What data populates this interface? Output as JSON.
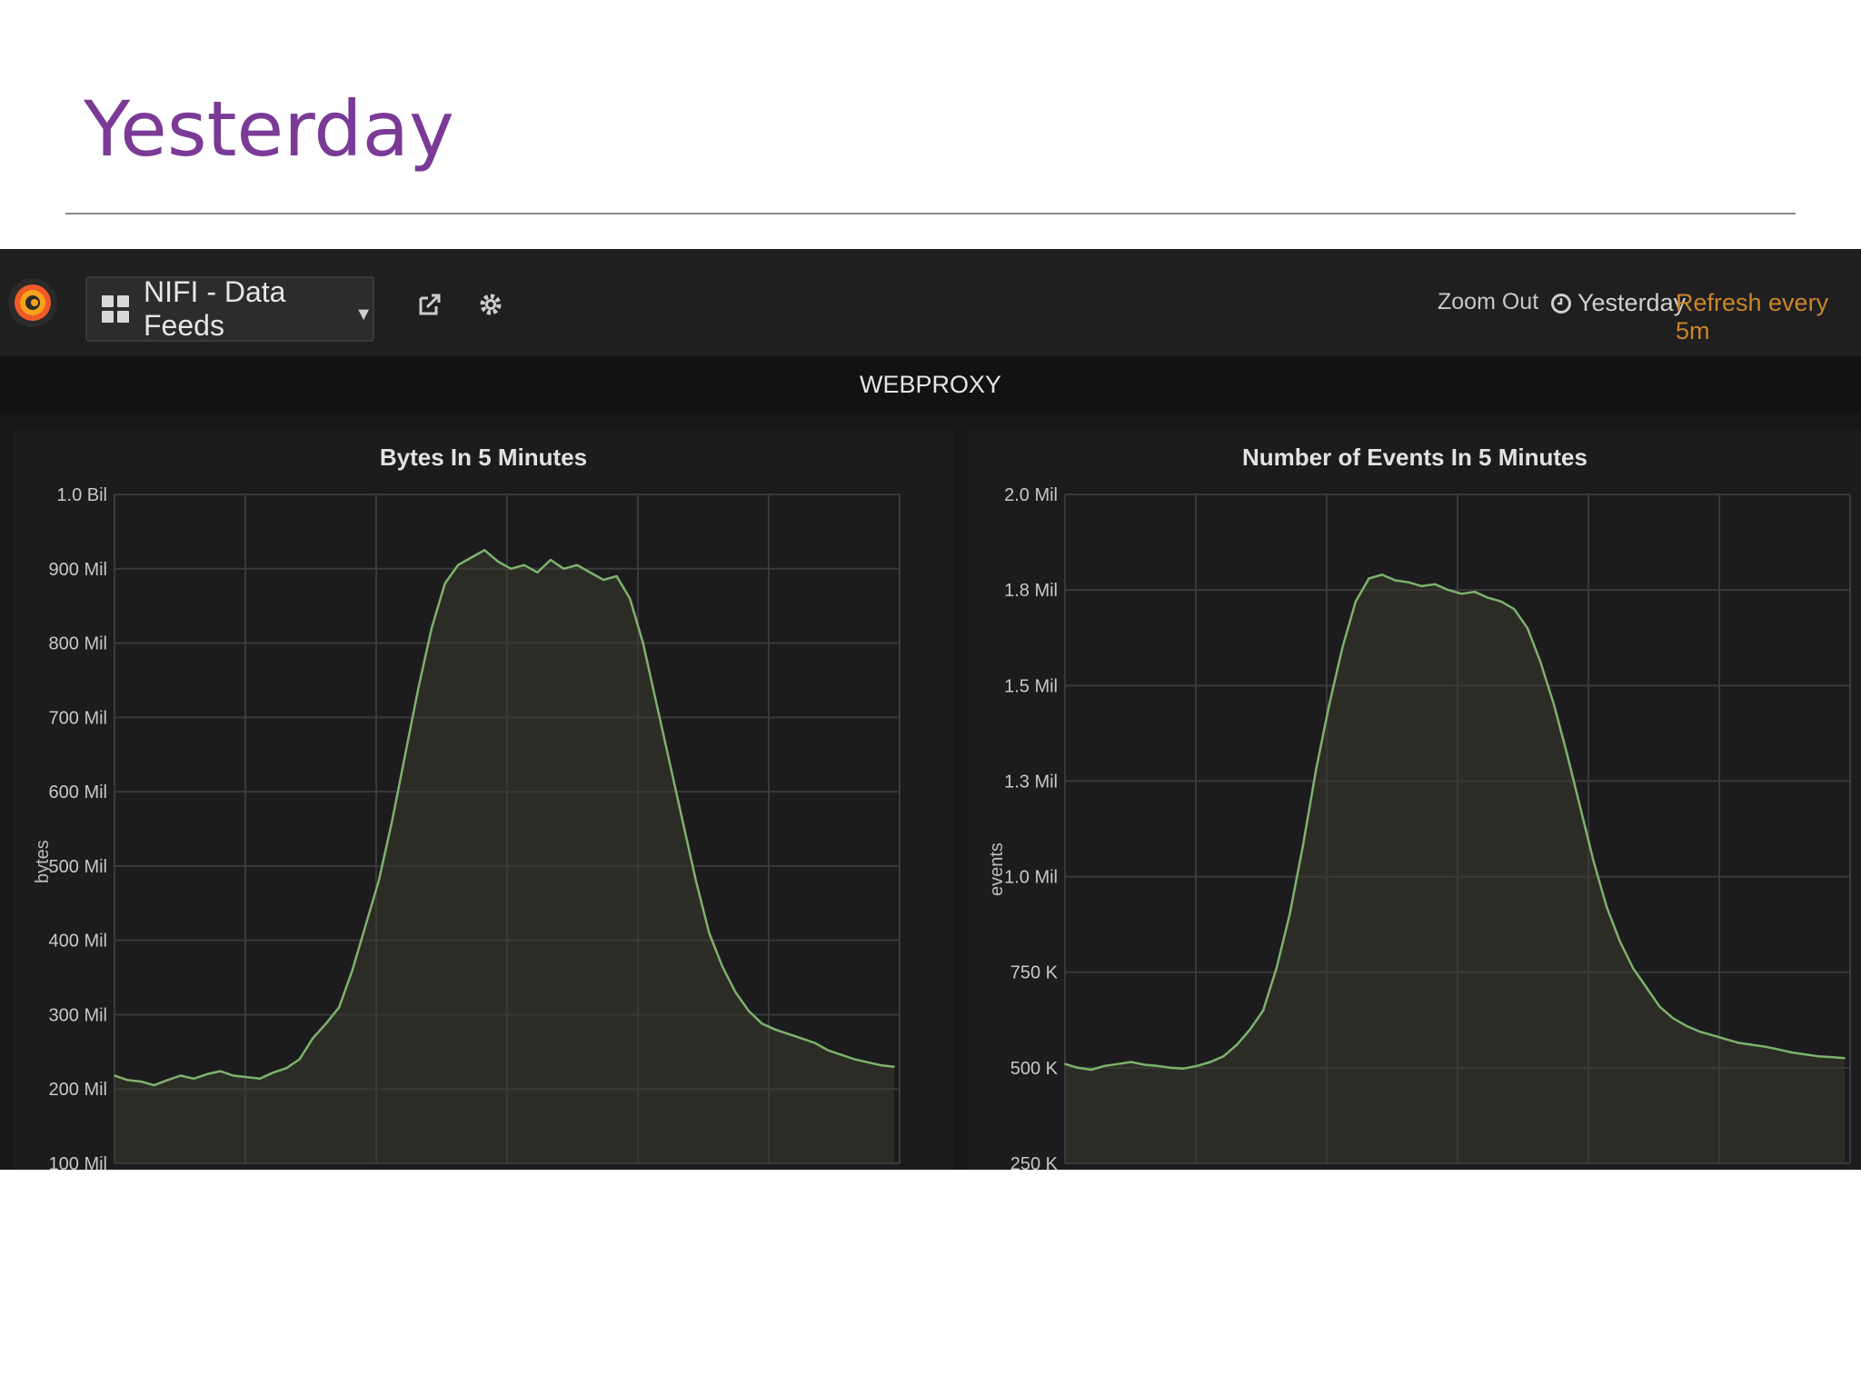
{
  "slide": {
    "title": "Yesterday"
  },
  "topbar": {
    "dashboard_label": "NIFI - Data Feeds",
    "zoom_out_label": "Zoom Out",
    "time_range_label": "Yesterday",
    "refresh_label": "Refresh every 5m",
    "icons": [
      "grafana-logo-icon",
      "dashboard-grid-icon",
      "chevron-down-icon",
      "share-icon",
      "gear-icon",
      "clock-icon"
    ],
    "colors": {
      "refresh": "#c9862a",
      "line": "#7eb26d",
      "fill": "#3a3a30"
    }
  },
  "row": {
    "title": "WEBPROXY"
  },
  "chart_data": [
    {
      "type": "area",
      "title": "Bytes In 5 Minutes",
      "ylabel": "bytes",
      "yticks": [
        "100 Mil",
        "200 Mil",
        "300 Mil",
        "400 Mil",
        "500 Mil",
        "600 Mil",
        "700 Mil",
        "800 Mil",
        "900 Mil",
        "1.0 Bil"
      ],
      "ylim": [
        100000000,
        1000000000
      ],
      "grid": true,
      "series": [
        {
          "values": [
            218,
            212,
            210,
            205,
            212,
            218,
            214,
            220,
            224,
            218,
            216,
            214,
            222,
            228,
            240,
            268,
            288,
            310,
            360,
            420,
            480,
            560,
            650,
            740,
            820,
            880,
            905,
            915,
            925,
            910,
            900,
            905,
            895,
            912,
            900,
            905,
            895,
            885,
            890,
            860,
            800,
            720,
            640,
            560,
            480,
            410,
            365,
            330,
            305,
            288,
            280,
            274,
            268,
            262,
            252,
            246,
            240,
            236,
            232,
            230
          ]
        }
      ]
    },
    {
      "type": "area",
      "title": "Number of Events In 5 Minutes",
      "ylabel": "events",
      "yticks": [
        "250 K",
        "500 K",
        "750 K",
        "1.0 Mil",
        "1.3 Mil",
        "1.5 Mil",
        "1.8 Mil",
        "2.0 Mil"
      ],
      "ylim": [
        250000,
        2000000
      ],
      "grid": true,
      "series": [
        {
          "values": [
            510,
            500,
            495,
            505,
            510,
            515,
            508,
            505,
            500,
            498,
            505,
            515,
            530,
            560,
            600,
            650,
            760,
            900,
            1080,
            1280,
            1450,
            1600,
            1720,
            1780,
            1790,
            1775,
            1770,
            1760,
            1765,
            1750,
            1740,
            1745,
            1730,
            1720,
            1700,
            1650,
            1560,
            1450,
            1320,
            1180,
            1040,
            920,
            830,
            760,
            710,
            660,
            630,
            610,
            595,
            585,
            575,
            565,
            560,
            555,
            548,
            540,
            535,
            530,
            528,
            525
          ]
        }
      ]
    }
  ]
}
